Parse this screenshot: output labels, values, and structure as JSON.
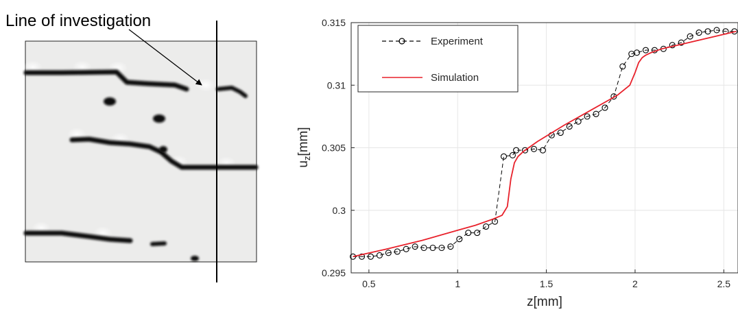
{
  "left_panel": {
    "annotation": "Line of investigation"
  },
  "colors": {
    "experiment": "#000000",
    "simulation": "#e8202a",
    "grid": "#e6e6e6",
    "crack": "#111111",
    "crack_background": "#ececeb"
  },
  "chart_data": {
    "type": "line",
    "xlabel_main": "z",
    "xlabel_unit": "[mm]",
    "ylabel_main": "u",
    "ylabel_sub": "z",
    "ylabel_unit": "[mm]",
    "xlim": [
      0.4,
      2.58
    ],
    "ylim": [
      0.295,
      0.315
    ],
    "xticks": [
      0.5,
      1,
      1.5,
      2,
      2.5
    ],
    "xtick_labels": [
      "0.5",
      "1",
      "1.5",
      "2",
      "2.5"
    ],
    "yticks": [
      0.295,
      0.3,
      0.305,
      0.31,
      0.315
    ],
    "ytick_labels": [
      "0.295",
      "0.3",
      "0.305",
      "0.31",
      "0.315"
    ],
    "grid": true,
    "legend_position": "top-left",
    "series": [
      {
        "name": "Experiment",
        "style": "dashed-circle",
        "x": [
          0.41,
          0.46,
          0.51,
          0.56,
          0.61,
          0.66,
          0.71,
          0.76,
          0.81,
          0.86,
          0.91,
          0.96,
          1.01,
          1.06,
          1.11,
          1.16,
          1.21,
          1.26,
          1.31,
          1.33,
          1.38,
          1.43,
          1.48,
          1.53,
          1.58,
          1.63,
          1.68,
          1.73,
          1.78,
          1.83,
          1.88,
          1.93,
          1.98,
          2.01,
          2.06,
          2.11,
          2.16,
          2.21,
          2.26,
          2.31,
          2.36,
          2.41,
          2.46,
          2.51,
          2.56
        ],
        "y": [
          0.2963,
          0.2963,
          0.2963,
          0.2964,
          0.2966,
          0.2967,
          0.2969,
          0.2971,
          0.297,
          0.297,
          0.297,
          0.2971,
          0.2977,
          0.2982,
          0.2982,
          0.2987,
          0.2991,
          0.3043,
          0.3044,
          0.3048,
          0.3048,
          0.3049,
          0.3048,
          0.306,
          0.3062,
          0.3067,
          0.3071,
          0.3075,
          0.3077,
          0.3082,
          0.3091,
          0.3115,
          0.3125,
          0.3126,
          0.3128,
          0.3128,
          0.3129,
          0.3132,
          0.3134,
          0.3139,
          0.3142,
          0.3143,
          0.3144,
          0.3143,
          0.3143
        ]
      },
      {
        "name": "Simulation",
        "style": "solid",
        "x": [
          0.41,
          0.6,
          0.8,
          1.0,
          1.1,
          1.2,
          1.25,
          1.28,
          1.3,
          1.32,
          1.34,
          1.37,
          1.45,
          1.6,
          1.75,
          1.9,
          1.97,
          2.0,
          2.02,
          2.04,
          2.06,
          2.09,
          2.15,
          2.3,
          2.45,
          2.57
        ],
        "y": [
          0.2963,
          0.2969,
          0.2976,
          0.2984,
          0.2988,
          0.2993,
          0.2996,
          0.3003,
          0.3025,
          0.3038,
          0.3043,
          0.3047,
          0.3055,
          0.3068,
          0.308,
          0.3092,
          0.31,
          0.311,
          0.3118,
          0.3122,
          0.3124,
          0.3126,
          0.3129,
          0.3134,
          0.3139,
          0.3143
        ]
      }
    ]
  }
}
